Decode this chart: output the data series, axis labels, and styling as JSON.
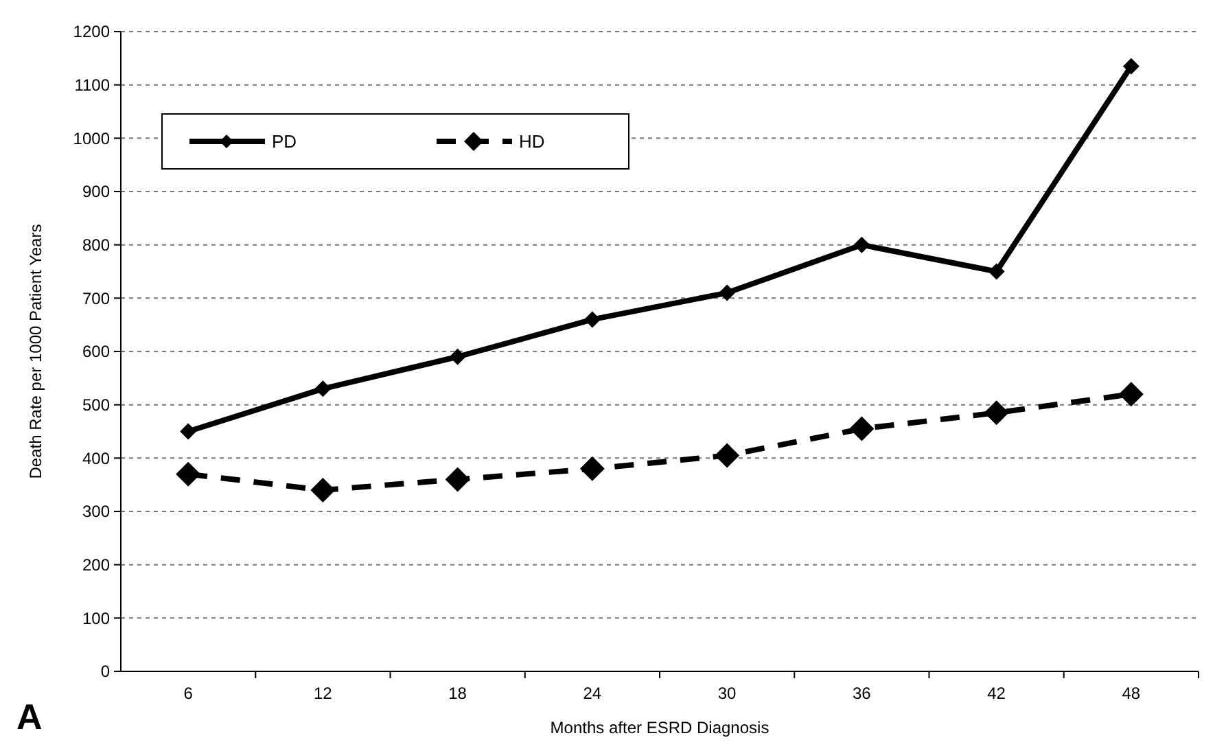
{
  "chart_data": {
    "type": "line",
    "xlabel": "Months after ESRD Diagnosis",
    "ylabel": "Death Rate per 1000 Patient Years",
    "categories": [
      "6",
      "12",
      "18",
      "24",
      "30",
      "36",
      "42",
      "48"
    ],
    "series": [
      {
        "name": "PD",
        "color": "#000000",
        "line_style": "solid",
        "values": [
          450,
          530,
          590,
          660,
          710,
          800,
          750,
          1135
        ]
      },
      {
        "name": "HD",
        "color": "#000000",
        "line_style": "dashed",
        "values": [
          370,
          340,
          360,
          380,
          405,
          455,
          485,
          520
        ]
      }
    ],
    "ylim": [
      0,
      1200
    ],
    "yticks": [
      0,
      100,
      200,
      300,
      400,
      500,
      600,
      700,
      800,
      900,
      1000,
      1100,
      1200
    ],
    "grid": "y",
    "legend": "top left",
    "marker": "diamond",
    "annotations": [
      "A"
    ]
  }
}
